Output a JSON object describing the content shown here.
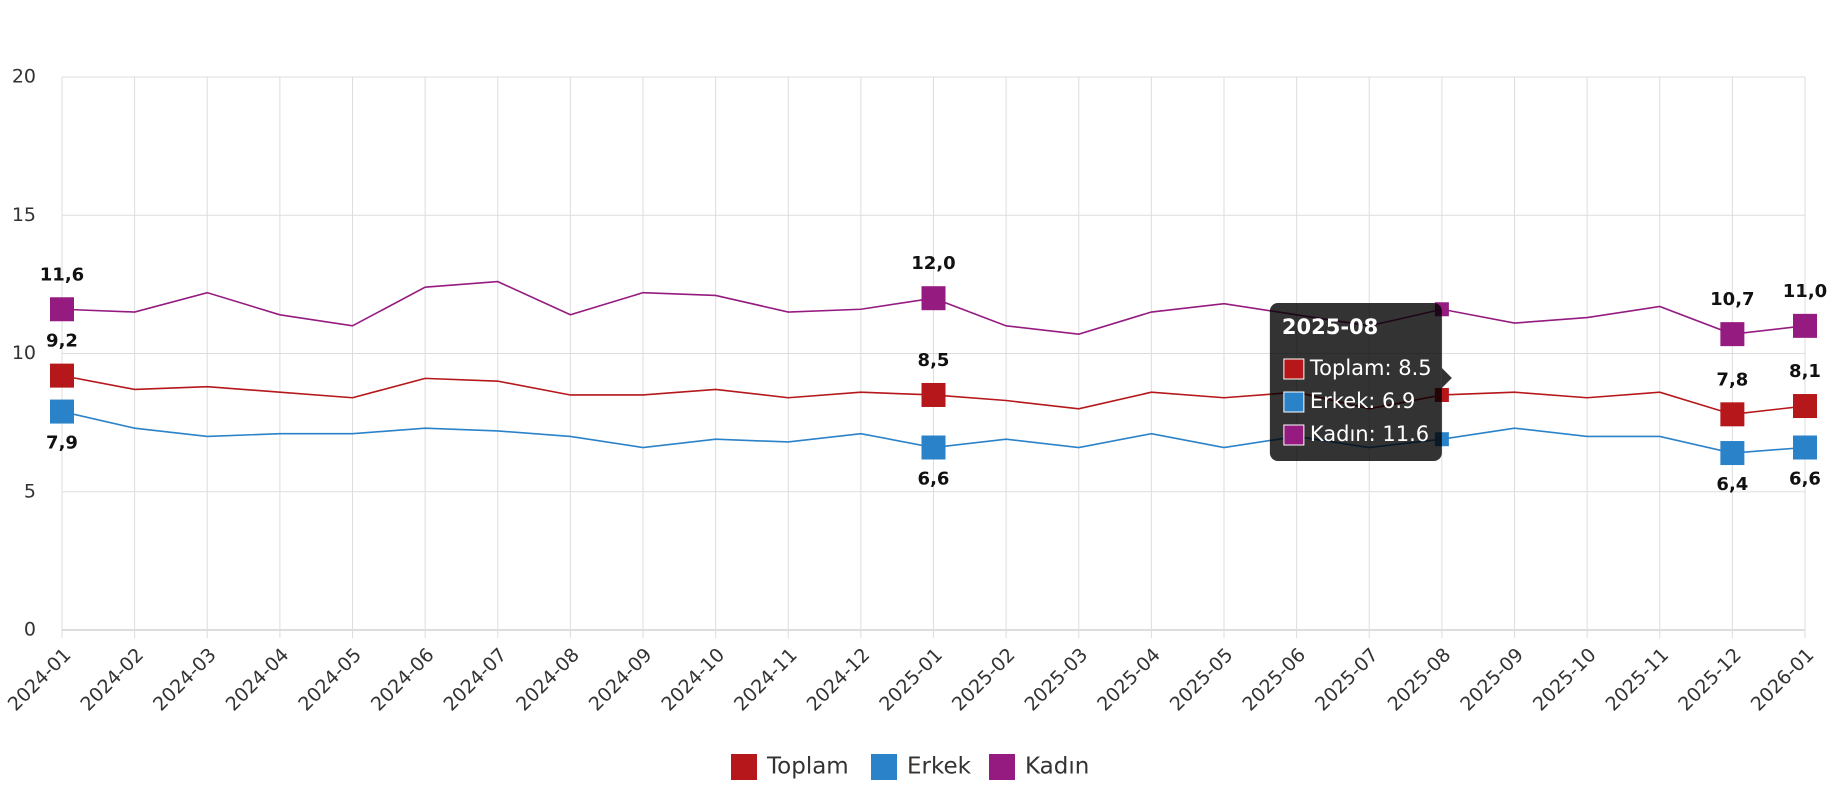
{
  "chart_data": {
    "type": "line",
    "categories": [
      "2024-01",
      "2024-02",
      "2024-03",
      "2024-04",
      "2024-05",
      "2024-06",
      "2024-07",
      "2024-08",
      "2024-09",
      "2024-10",
      "2024-11",
      "2024-12",
      "2025-01",
      "2025-02",
      "2025-03",
      "2025-04",
      "2025-05",
      "2025-06",
      "2025-07",
      "2025-08",
      "2025-09",
      "2025-10",
      "2025-11",
      "2025-12",
      "2026-01"
    ],
    "series": [
      {
        "name": "Toplam",
        "color": "#b5171a",
        "values": [
          9.2,
          8.7,
          8.8,
          8.6,
          8.4,
          9.1,
          9.0,
          8.5,
          8.5,
          8.7,
          8.4,
          8.6,
          8.5,
          8.3,
          8.0,
          8.6,
          8.4,
          8.6,
          8.0,
          8.5,
          8.6,
          8.4,
          8.6,
          7.8,
          8.1
        ],
        "value_labels": [
          "9,2",
          null,
          null,
          null,
          null,
          null,
          null,
          null,
          null,
          null,
          null,
          null,
          "8,5",
          null,
          null,
          null,
          null,
          null,
          null,
          null,
          null,
          null,
          null,
          "7,8",
          "8,1"
        ]
      },
      {
        "name": "Erkek",
        "color": "#2a82c9",
        "values": [
          7.9,
          7.3,
          7.0,
          7.1,
          7.1,
          7.3,
          7.2,
          7.0,
          6.6,
          6.9,
          6.8,
          7.1,
          6.6,
          6.9,
          6.6,
          7.1,
          6.6,
          7.0,
          6.6,
          6.9,
          7.3,
          7.0,
          7.0,
          6.4,
          6.6
        ],
        "value_labels": [
          "7,9",
          null,
          null,
          null,
          null,
          null,
          null,
          null,
          null,
          null,
          null,
          null,
          "6,6",
          null,
          null,
          null,
          null,
          null,
          null,
          null,
          null,
          null,
          null,
          "6,4",
          "6,6"
        ]
      },
      {
        "name": "Kadın",
        "color": "#951b81",
        "values": [
          11.6,
          11.5,
          12.2,
          11.4,
          11.0,
          12.4,
          12.6,
          11.4,
          12.2,
          12.1,
          11.5,
          11.6,
          12.0,
          11.0,
          10.7,
          11.5,
          11.8,
          11.4,
          11.0,
          11.6,
          11.1,
          11.3,
          11.7,
          10.7,
          11.0
        ],
        "value_labels": [
          "11,6",
          null,
          null,
          null,
          null,
          null,
          null,
          null,
          null,
          null,
          null,
          null,
          "12,0",
          null,
          null,
          null,
          null,
          null,
          null,
          null,
          null,
          null,
          null,
          "10,7",
          "11,0"
        ]
      }
    ],
    "ylim": [
      0,
      20
    ],
    "yticks": [
      0,
      5,
      10,
      15,
      20
    ],
    "grid": true,
    "legend": "bottom",
    "tooltip": {
      "category_index": 19,
      "title": "2025-08",
      "items": [
        "Toplam: 8.5",
        "Erkek: 6.9",
        "Kadın: 11.6"
      ]
    }
  }
}
